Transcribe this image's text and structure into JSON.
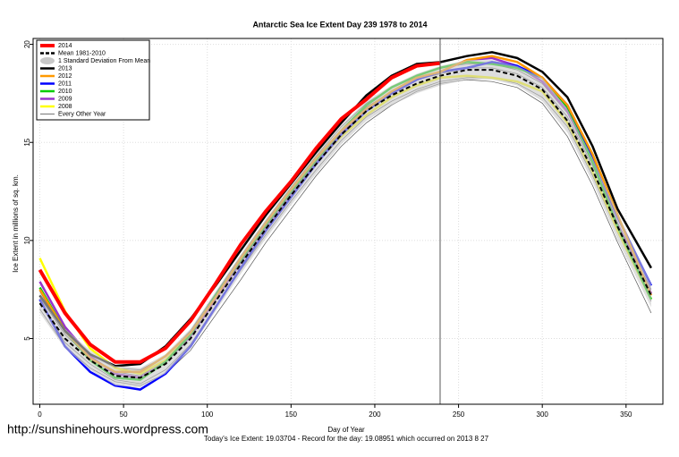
{
  "chart_data": {
    "type": "line",
    "title": "Antarctic Sea Ice Extent Day 239 1978 to 2014",
    "xlabel": "Day of Year",
    "ylabel": "Ice Extent in millions of sq. km.",
    "footer": "Today's Ice Extent: 19.03704  - Record for the day: 19.08951 which occurred on 2013 8 27",
    "watermark": "http://sunshinehours.wordpress.com",
    "vline_x": 239,
    "grid": true,
    "legend": "top-left",
    "xlim": [
      -4,
      372
    ],
    "ylim": [
      1.65,
      20.3
    ],
    "xticks": [
      0,
      50,
      100,
      150,
      200,
      250,
      300,
      350
    ],
    "yticks": [
      5,
      10,
      15,
      20
    ],
    "x": [
      0,
      15,
      30,
      45,
      60,
      75,
      90,
      105,
      120,
      135,
      150,
      165,
      180,
      195,
      210,
      225,
      239,
      255,
      270,
      285,
      300,
      315,
      330,
      345,
      365
    ],
    "series": [
      {
        "name": "2014",
        "color": "#ff0000",
        "values": [
          8.5,
          6.3,
          4.7,
          3.8,
          3.8,
          4.5,
          5.9,
          7.8,
          9.8,
          11.5,
          13.0,
          14.7,
          16.2,
          17.2,
          18.3,
          18.9,
          19.04,
          null,
          null,
          null,
          null,
          null,
          null,
          null,
          null
        ]
      },
      {
        "name": "Mean 1981-2010",
        "color": "#000000",
        "dashed": true,
        "values": [
          6.8,
          5.0,
          3.9,
          3.1,
          3.0,
          3.7,
          5.0,
          6.9,
          8.8,
          10.6,
          12.3,
          13.9,
          15.4,
          16.6,
          17.4,
          18.0,
          18.4,
          18.7,
          18.7,
          18.4,
          17.7,
          16.1,
          13.6,
          10.7,
          7.2
        ]
      },
      {
        "name": "1 Standard Deviation From Mean",
        "color": "#c8c8c8",
        "band": true,
        "lower": [
          6.3,
          4.5,
          3.4,
          2.6,
          2.5,
          3.2,
          4.5,
          6.4,
          8.3,
          10.1,
          11.8,
          13.4,
          14.9,
          16.1,
          16.9,
          17.5,
          17.9,
          18.2,
          18.2,
          17.9,
          17.1,
          15.5,
          13.0,
          10.0,
          6.6
        ],
        "upper": [
          7.3,
          5.5,
          4.4,
          3.6,
          3.5,
          4.2,
          5.5,
          7.4,
          9.3,
          11.1,
          12.8,
          14.4,
          15.9,
          17.1,
          17.9,
          18.5,
          18.9,
          19.2,
          19.2,
          18.9,
          18.3,
          16.7,
          14.2,
          11.4,
          7.8
        ]
      },
      {
        "name": "2013",
        "color": "#000000",
        "values": [
          7.2,
          5.4,
          4.2,
          3.6,
          3.7,
          4.6,
          6.0,
          7.7,
          9.5,
          11.3,
          12.9,
          14.5,
          16.0,
          17.4,
          18.4,
          19.0,
          19.09,
          19.4,
          19.6,
          19.3,
          18.6,
          17.3,
          14.8,
          11.6,
          8.6
        ]
      },
      {
        "name": "2012",
        "color": "#ff9900",
        "values": [
          7.5,
          5.4,
          4.0,
          3.3,
          3.3,
          4.1,
          5.3,
          7.1,
          9.1,
          10.9,
          12.6,
          14.2,
          15.6,
          16.7,
          17.6,
          18.3,
          18.6,
          19.2,
          19.4,
          19.1,
          18.3,
          16.9,
          14.4,
          11.3,
          7.2
        ]
      },
      {
        "name": "2011",
        "color": "#0000ff",
        "values": [
          7.0,
          4.6,
          3.3,
          2.6,
          2.4,
          3.2,
          4.6,
          6.6,
          8.6,
          10.5,
          12.2,
          13.9,
          15.4,
          16.6,
          17.5,
          18.2,
          18.6,
          18.8,
          19.1,
          18.9,
          18.3,
          16.9,
          14.3,
          11.2,
          7.7
        ]
      },
      {
        "name": "2010",
        "color": "#00cc00",
        "values": [
          7.6,
          5.4,
          3.9,
          3.0,
          2.9,
          3.8,
          5.2,
          7.2,
          9.0,
          10.8,
          12.5,
          14.1,
          15.6,
          16.9,
          17.8,
          18.4,
          18.8,
          19.1,
          19.0,
          18.8,
          18.3,
          16.8,
          14.0,
          10.7,
          7.0
        ]
      },
      {
        "name": "2009",
        "color": "#9933cc",
        "values": [
          7.9,
          5.6,
          4.1,
          3.2,
          3.0,
          3.8,
          5.1,
          7.0,
          8.9,
          10.7,
          12.4,
          14.0,
          15.5,
          16.7,
          17.5,
          18.2,
          18.6,
          19.2,
          19.3,
          18.9,
          18.1,
          16.6,
          14.0,
          10.8,
          7.3
        ]
      },
      {
        "name": "2008",
        "color": "#ffff00",
        "values": [
          9.1,
          6.4,
          4.5,
          3.5,
          3.2,
          3.9,
          5.2,
          7.0,
          8.9,
          10.7,
          12.4,
          14.0,
          15.3,
          16.4,
          17.3,
          17.9,
          18.3,
          18.4,
          18.3,
          18.1,
          17.6,
          16.0,
          13.5,
          10.5,
          7.0
        ]
      },
      {
        "name": "Every Other Year",
        "color": "#555555",
        "thin": true,
        "lines": [
          [
            6.5,
            4.6,
            3.5,
            2.8,
            2.6,
            3.2,
            4.4,
            6.2,
            8.0,
            9.9,
            11.6,
            13.3,
            14.8,
            16.0,
            16.9,
            17.6,
            18.0,
            18.2,
            18.1,
            17.8,
            17.0,
            15.3,
            12.8,
            9.9,
            6.3
          ],
          [
            7.1,
            5.2,
            4.0,
            3.3,
            3.1,
            3.9,
            5.2,
            7.1,
            9.0,
            10.8,
            12.5,
            14.1,
            15.6,
            16.8,
            17.6,
            18.2,
            18.5,
            18.8,
            18.8,
            18.5,
            17.8,
            16.3,
            13.8,
            10.9,
            7.5
          ],
          [
            6.9,
            4.8,
            3.7,
            2.9,
            2.7,
            3.4,
            4.7,
            6.6,
            8.5,
            10.3,
            12.0,
            13.6,
            15.1,
            16.3,
            17.1,
            17.7,
            18.1,
            18.3,
            18.3,
            18.0,
            17.3,
            15.8,
            13.3,
            10.4,
            6.9
          ],
          [
            7.4,
            5.3,
            4.2,
            3.5,
            3.4,
            4.1,
            5.4,
            7.3,
            9.2,
            11.0,
            12.7,
            14.3,
            15.8,
            17.0,
            17.8,
            18.4,
            18.8,
            19.0,
            19.0,
            18.7,
            18.0,
            16.5,
            14.0,
            11.1,
            7.8
          ]
        ]
      }
    ]
  }
}
